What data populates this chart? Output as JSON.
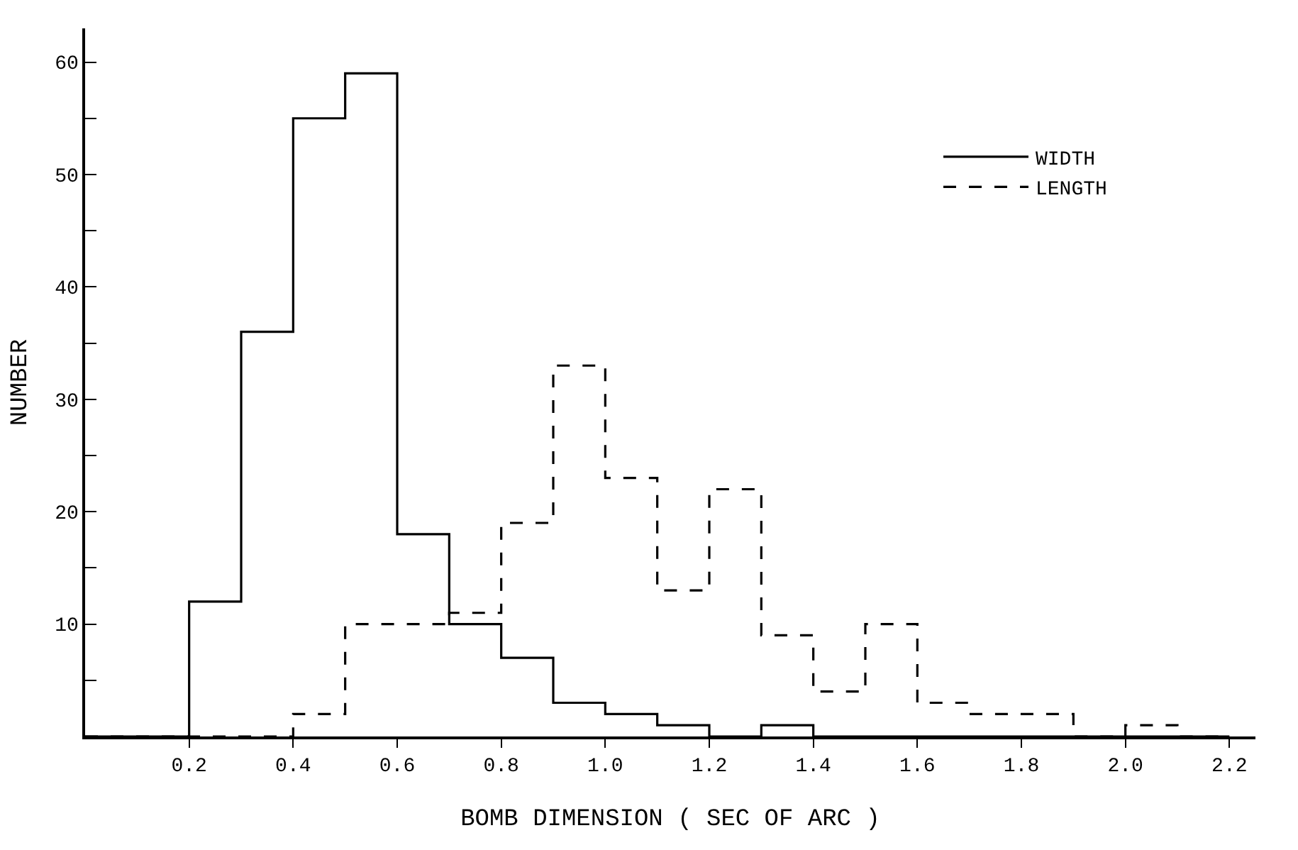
{
  "chart_data": {
    "type": "histogram",
    "xlabel": "BOMB DIMENSION ( SEC OF ARC )",
    "ylabel": "NUMBER",
    "bins": [
      0.0,
      0.1,
      0.2,
      0.3,
      0.4,
      0.5,
      0.6,
      0.7,
      0.8,
      0.9,
      1.0,
      1.1,
      1.2,
      1.3,
      1.4,
      1.5,
      1.6,
      1.7,
      1.8,
      1.9,
      2.0,
      2.1,
      2.2
    ],
    "series": [
      {
        "name": "WIDTH",
        "color": "#000000",
        "line_style": "solid",
        "values": [
          0,
          0,
          12,
          36,
          55,
          59,
          18,
          10,
          7,
          3,
          2,
          1,
          0,
          1,
          0,
          0,
          0,
          0,
          0,
          0,
          0,
          0
        ]
      },
      {
        "name": "LENGTH",
        "color": "#000000",
        "line_style": "dashed",
        "values": [
          0,
          0,
          0,
          0,
          2,
          10,
          10,
          11,
          19,
          33,
          23,
          13,
          22,
          9,
          4,
          10,
          3,
          2,
          2,
          0,
          1,
          0
        ]
      }
    ],
    "xlim": [
      0,
      2.25
    ],
    "ylim": [
      0,
      63
    ],
    "xticks": [
      {
        "value": 0.2,
        "label": "0.2"
      },
      {
        "value": 0.4,
        "label": "0.4"
      },
      {
        "value": 0.6,
        "label": "0.6"
      },
      {
        "value": 0.8,
        "label": "0.8"
      },
      {
        "value": 1.0,
        "label": "1.0"
      },
      {
        "value": 1.2,
        "label": "1.2"
      },
      {
        "value": 1.4,
        "label": "1.4"
      },
      {
        "value": 1.6,
        "label": "1.6"
      },
      {
        "value": 1.8,
        "label": "1.8"
      },
      {
        "value": 2.0,
        "label": "2.0"
      },
      {
        "value": 2.2,
        "label": "2.2"
      }
    ],
    "yticks": [
      {
        "value": 5,
        "label": null
      },
      10,
      {
        "value": 15,
        "label": null
      },
      20,
      {
        "value": 25,
        "label": null
      },
      30,
      {
        "value": 35,
        "label": null
      },
      40,
      {
        "value": 45,
        "label": null
      },
      50,
      {
        "value": 55,
        "label": null
      },
      60
    ],
    "legend": "top right"
  }
}
